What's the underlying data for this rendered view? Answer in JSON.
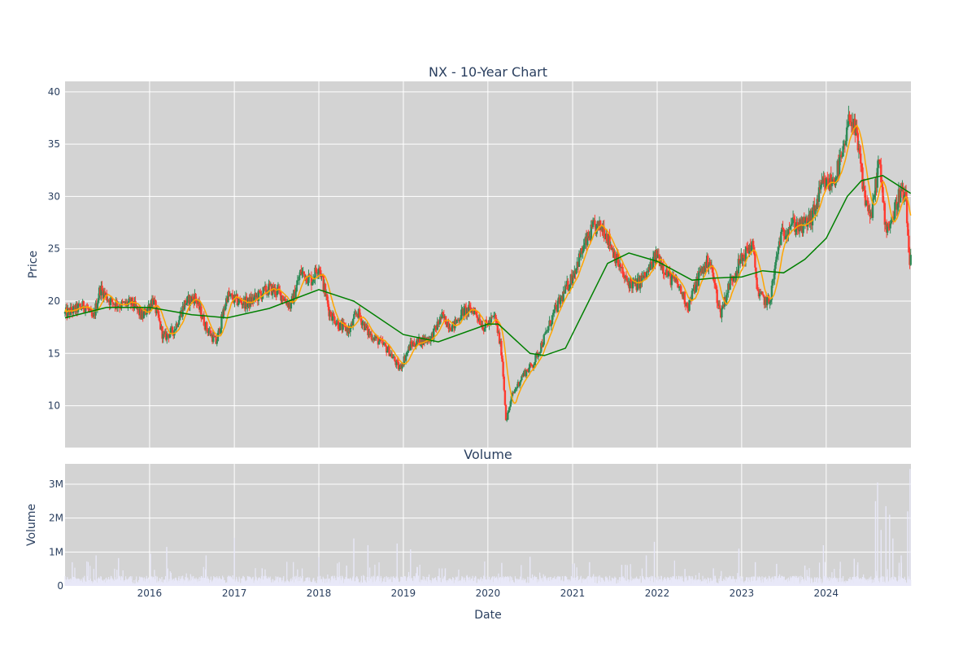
{
  "chart_data": [
    {
      "type": "candlestick",
      "title": "NX - 10-Year Chart",
      "xlabel": "",
      "ylabel": "Price",
      "ylim": [
        6,
        41
      ],
      "yticks": [
        10,
        15,
        20,
        25,
        30,
        35,
        40
      ],
      "xrange": [
        "2015-01-01",
        "2025-01-01"
      ],
      "xticks": [
        "2016",
        "2017",
        "2018",
        "2019",
        "2020",
        "2021",
        "2022",
        "2023",
        "2024"
      ],
      "grid": true,
      "background": "#d3d3d3",
      "colors": {
        "up": "#2e8b57",
        "down": "#ff3b30",
        "ma_short": "#ffa500",
        "ma_long": "#008000"
      },
      "close_series": [
        [
          "2015-01-01",
          18.8
        ],
        [
          "2015-02-15",
          19.2
        ],
        [
          "2015-04-01",
          19.6
        ],
        [
          "2015-05-01",
          18.2
        ],
        [
          "2015-06-01",
          21.2
        ],
        [
          "2015-07-15",
          20.0
        ],
        [
          "2015-09-01",
          19.6
        ],
        [
          "2015-10-15",
          19.8
        ],
        [
          "2015-12-01",
          18.5
        ],
        [
          "2016-01-15",
          20.2
        ],
        [
          "2016-03-01",
          16.5
        ],
        [
          "2016-04-15",
          17.2
        ],
        [
          "2016-06-01",
          19.8
        ],
        [
          "2016-07-15",
          20.4
        ],
        [
          "2016-09-01",
          17.5
        ],
        [
          "2016-10-15",
          16.0
        ],
        [
          "2016-12-01",
          20.5
        ],
        [
          "2017-01-15",
          20.0
        ],
        [
          "2017-03-01",
          19.8
        ],
        [
          "2017-04-15",
          20.5
        ],
        [
          "2017-06-01",
          21.2
        ],
        [
          "2017-07-15",
          20.8
        ],
        [
          "2017-09-01",
          19.5
        ],
        [
          "2017-10-15",
          22.8
        ],
        [
          "2017-12-01",
          22.0
        ],
        [
          "2018-01-01",
          23.5
        ],
        [
          "2018-02-15",
          19.0
        ],
        [
          "2018-04-01",
          17.6
        ],
        [
          "2018-05-15",
          17.2
        ],
        [
          "2018-06-15",
          19.0
        ],
        [
          "2018-08-01",
          17.0
        ],
        [
          "2018-09-15",
          16.2
        ],
        [
          "2018-11-01",
          15.2
        ],
        [
          "2018-12-15",
          13.5
        ],
        [
          "2019-02-01",
          15.8
        ],
        [
          "2019-03-15",
          16.2
        ],
        [
          "2019-05-01",
          16.5
        ],
        [
          "2019-06-15",
          18.5
        ],
        [
          "2019-08-01",
          17.5
        ],
        [
          "2019-09-15",
          19.0
        ],
        [
          "2019-11-01",
          19.2
        ],
        [
          "2019-12-15",
          17.5
        ],
        [
          "2020-02-01",
          18.5
        ],
        [
          "2020-03-01",
          15.0
        ],
        [
          "2020-03-20",
          8.5
        ],
        [
          "2020-04-15",
          11.0
        ],
        [
          "2020-06-01",
          13.0
        ],
        [
          "2020-07-15",
          14.0
        ],
        [
          "2020-09-01",
          16.5
        ],
        [
          "2020-10-15",
          19.0
        ],
        [
          "2020-12-01",
          21.0
        ],
        [
          "2021-01-01",
          22.5
        ],
        [
          "2021-02-15",
          25.0
        ],
        [
          "2021-04-01",
          27.0
        ],
        [
          "2021-05-15",
          27.0
        ],
        [
          "2021-07-01",
          24.5
        ],
        [
          "2021-08-15",
          22.0
        ],
        [
          "2021-10-01",
          21.5
        ],
        [
          "2021-11-15",
          22.5
        ],
        [
          "2022-01-01",
          24.5
        ],
        [
          "2022-02-15",
          22.5
        ],
        [
          "2022-04-01",
          21.5
        ],
        [
          "2022-05-15",
          19.5
        ],
        [
          "2022-07-01",
          22.5
        ],
        [
          "2022-08-15",
          24.0
        ],
        [
          "2022-10-01",
          18.8
        ],
        [
          "2022-11-15",
          22.0
        ],
        [
          "2023-01-01",
          24.0
        ],
        [
          "2023-02-15",
          25.5
        ],
        [
          "2023-03-15",
          20.5
        ],
        [
          "2023-05-01",
          19.8
        ],
        [
          "2023-06-15",
          26.0
        ],
        [
          "2023-08-01",
          27.5
        ],
        [
          "2023-09-15",
          27.0
        ],
        [
          "2023-11-01",
          28.0
        ],
        [
          "2023-12-15",
          31.0
        ],
        [
          "2024-02-01",
          31.5
        ],
        [
          "2024-03-15",
          34.0
        ],
        [
          "2024-04-15",
          38.0
        ],
        [
          "2024-05-15",
          35.0
        ],
        [
          "2024-06-15",
          30.0
        ],
        [
          "2024-07-15",
          28.0
        ],
        [
          "2024-08-15",
          33.5
        ],
        [
          "2024-09-15",
          27.0
        ],
        [
          "2024-10-15",
          28.0
        ],
        [
          "2024-11-15",
          30.5
        ],
        [
          "2024-12-10",
          29.5
        ],
        [
          "2024-12-25",
          24.0
        ]
      ],
      "ma_long_series": [
        [
          "2015-01-01",
          18.4
        ],
        [
          "2015-07-01",
          19.4
        ],
        [
          "2016-01-01",
          19.4
        ],
        [
          "2016-07-01",
          18.7
        ],
        [
          "2016-12-01",
          18.4
        ],
        [
          "2017-06-01",
          19.3
        ],
        [
          "2018-01-01",
          21.1
        ],
        [
          "2018-06-01",
          20.0
        ],
        [
          "2019-01-01",
          16.8
        ],
        [
          "2019-06-01",
          16.1
        ],
        [
          "2020-01-01",
          17.8
        ],
        [
          "2020-02-15",
          17.8
        ],
        [
          "2020-07-01",
          15.0
        ],
        [
          "2020-09-01",
          14.8
        ],
        [
          "2020-12-01",
          15.5
        ],
        [
          "2021-06-01",
          23.6
        ],
        [
          "2021-09-01",
          24.6
        ],
        [
          "2022-01-01",
          23.8
        ],
        [
          "2022-06-01",
          22.0
        ],
        [
          "2022-09-01",
          22.2
        ],
        [
          "2023-01-01",
          22.3
        ],
        [
          "2023-04-01",
          22.9
        ],
        [
          "2023-07-01",
          22.7
        ],
        [
          "2023-10-01",
          24.0
        ],
        [
          "2024-01-01",
          26.0
        ],
        [
          "2024-04-01",
          30.0
        ],
        [
          "2024-06-01",
          31.5
        ],
        [
          "2024-09-01",
          32.0
        ],
        [
          "2024-12-31",
          30.3
        ]
      ]
    },
    {
      "type": "bar",
      "title": "Volume",
      "xlabel": "Date",
      "ylabel": "Volume",
      "ylim": [
        0,
        3600000
      ],
      "yticks": [
        0,
        1000000,
        2000000,
        3000000
      ],
      "ytick_labels": [
        "0",
        "1M",
        "2M",
        "3M"
      ],
      "grid": true,
      "background": "#d3d3d3",
      "bar_color": "#e8e8f8",
      "typical_volume": 150000,
      "spikes": [
        [
          "2015-02-01",
          700000
        ],
        [
          "2015-05-15",
          900000
        ],
        [
          "2015-08-20",
          820000
        ],
        [
          "2016-01-05",
          950000
        ],
        [
          "2016-03-15",
          1150000
        ],
        [
          "2016-09-01",
          900000
        ],
        [
          "2017-01-01",
          1420000
        ],
        [
          "2017-05-01",
          520000
        ],
        [
          "2018-01-01",
          850000
        ],
        [
          "2018-05-01",
          600000
        ],
        [
          "2018-06-01",
          1400000
        ],
        [
          "2018-08-01",
          1200000
        ],
        [
          "2018-12-05",
          1250000
        ],
        [
          "2019-02-01",
          1080000
        ],
        [
          "2019-03-01",
          560000
        ],
        [
          "2019-07-01",
          520000
        ],
        [
          "2020-03-01",
          680000
        ],
        [
          "2020-07-01",
          860000
        ],
        [
          "2021-01-01",
          650000
        ],
        [
          "2021-03-15",
          700000
        ],
        [
          "2021-08-01",
          620000
        ],
        [
          "2021-11-15",
          900000
        ],
        [
          "2021-12-20",
          1300000
        ],
        [
          "2022-05-01",
          500000
        ],
        [
          "2022-09-01",
          520000
        ],
        [
          "2022-12-20",
          1100000
        ],
        [
          "2023-03-01",
          700000
        ],
        [
          "2023-06-01",
          650000
        ],
        [
          "2023-10-01",
          600000
        ],
        [
          "2023-12-20",
          1200000
        ],
        [
          "2024-03-01",
          500000
        ],
        [
          "2024-05-01",
          800000
        ],
        [
          "2024-08-01",
          2500000
        ],
        [
          "2024-08-10",
          3050000
        ],
        [
          "2024-08-25",
          1650000
        ],
        [
          "2024-09-15",
          2350000
        ],
        [
          "2024-10-01",
          2100000
        ],
        [
          "2024-10-15",
          1400000
        ],
        [
          "2024-11-20",
          900000
        ],
        [
          "2024-12-18",
          2200000
        ],
        [
          "2024-12-28",
          3450000
        ]
      ]
    }
  ]
}
